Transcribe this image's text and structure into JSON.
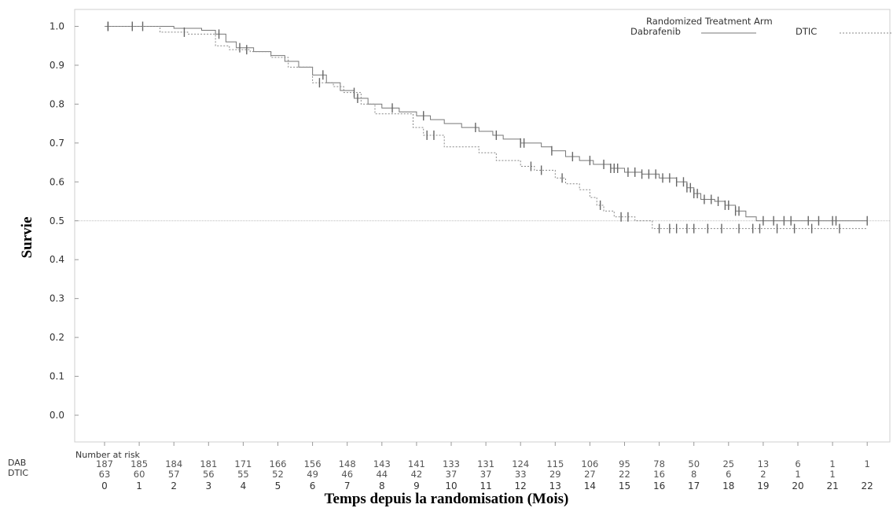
{
  "chart_data": {
    "type": "line",
    "subtype": "kaplan-meier",
    "xlabel": "Temps depuis la randomisation (Mois)",
    "ylabel": "Survie",
    "xlim": [
      0,
      22
    ],
    "ylim": [
      0,
      1
    ],
    "x_ticks": [
      "0",
      "1",
      "2",
      "3",
      "4",
      "5",
      "6",
      "7",
      "8",
      "9",
      "10",
      "11",
      "12",
      "13",
      "14",
      "15",
      "16",
      "17",
      "18",
      "19",
      "20",
      "21",
      "22"
    ],
    "y_ticks": [
      "0.0",
      "0.1",
      "0.2",
      "0.3",
      "0.4",
      "0.5",
      "0.6",
      "0.7",
      "0.8",
      "0.9",
      "1.0"
    ],
    "reference_line_y": 0.5,
    "legend": {
      "title": "Randomized Treatment Arm",
      "position": "top-right",
      "entries": [
        {
          "label": "Dabrafenib",
          "style": "solid"
        },
        {
          "label": "DTIC",
          "style": "dotted"
        }
      ]
    },
    "series": [
      {
        "name": "Dabrafenib",
        "style": "solid",
        "color": "#777777",
        "steps": [
          [
            0,
            1.0
          ],
          [
            1.2,
            1.0
          ],
          [
            2.0,
            0.995
          ],
          [
            2.8,
            0.99
          ],
          [
            3.2,
            0.98
          ],
          [
            3.5,
            0.96
          ],
          [
            3.8,
            0.945
          ],
          [
            4.3,
            0.935
          ],
          [
            4.8,
            0.925
          ],
          [
            5.2,
            0.91
          ],
          [
            5.6,
            0.895
          ],
          [
            6.0,
            0.875
          ],
          [
            6.4,
            0.855
          ],
          [
            6.8,
            0.835
          ],
          [
            7.2,
            0.815
          ],
          [
            7.6,
            0.8
          ],
          [
            8.0,
            0.79
          ],
          [
            8.5,
            0.78
          ],
          [
            9.0,
            0.77
          ],
          [
            9.4,
            0.76
          ],
          [
            9.8,
            0.75
          ],
          [
            10.3,
            0.74
          ],
          [
            10.8,
            0.73
          ],
          [
            11.2,
            0.72
          ],
          [
            11.5,
            0.71
          ],
          [
            12.0,
            0.7
          ],
          [
            12.6,
            0.69
          ],
          [
            12.9,
            0.68
          ],
          [
            13.3,
            0.665
          ],
          [
            13.7,
            0.655
          ],
          [
            14.1,
            0.645
          ],
          [
            14.6,
            0.635
          ],
          [
            15.0,
            0.625
          ],
          [
            15.5,
            0.62
          ],
          [
            16.0,
            0.61
          ],
          [
            16.5,
            0.6
          ],
          [
            16.8,
            0.585
          ],
          [
            17.0,
            0.57
          ],
          [
            17.2,
            0.555
          ],
          [
            17.6,
            0.55
          ],
          [
            17.9,
            0.54
          ],
          [
            18.2,
            0.525
          ],
          [
            18.5,
            0.51
          ],
          [
            18.8,
            0.5
          ],
          [
            22,
            0.5
          ]
        ],
        "censor_x": [
          0.1,
          0.8,
          1.1,
          3.3,
          3.9,
          6.3,
          7.3,
          8.3,
          9.2,
          10.7,
          11.3,
          12.0,
          12.1,
          12.9,
          13.5,
          14.0,
          14.4,
          14.6,
          14.7,
          14.8,
          15.1,
          15.3,
          15.5,
          15.7,
          15.9,
          16.1,
          16.3,
          16.5,
          16.7,
          16.8,
          16.9,
          17.0,
          17.1,
          17.3,
          17.5,
          17.7,
          17.9,
          18.0,
          18.2,
          18.3,
          19.0,
          19.3,
          19.6,
          19.8,
          20.3,
          20.6,
          21.0,
          21.1,
          22.0
        ]
      },
      {
        "name": "DTIC",
        "style": "dotted",
        "color": "#888888",
        "steps": [
          [
            0,
            1.0
          ],
          [
            1.6,
            0.985
          ],
          [
            2.4,
            0.98
          ],
          [
            3.2,
            0.95
          ],
          [
            3.6,
            0.94
          ],
          [
            4.2,
            0.935
          ],
          [
            4.8,
            0.92
          ],
          [
            5.3,
            0.895
          ],
          [
            6.0,
            0.855
          ],
          [
            6.6,
            0.845
          ],
          [
            6.9,
            0.83
          ],
          [
            7.4,
            0.8
          ],
          [
            7.8,
            0.775
          ],
          [
            8.9,
            0.74
          ],
          [
            9.2,
            0.72
          ],
          [
            9.8,
            0.69
          ],
          [
            10.8,
            0.675
          ],
          [
            11.3,
            0.655
          ],
          [
            12.0,
            0.64
          ],
          [
            12.4,
            0.63
          ],
          [
            13.0,
            0.61
          ],
          [
            13.3,
            0.595
          ],
          [
            13.7,
            0.58
          ],
          [
            14.0,
            0.56
          ],
          [
            14.2,
            0.54
          ],
          [
            14.4,
            0.525
          ],
          [
            14.7,
            0.51
          ],
          [
            15.3,
            0.5
          ],
          [
            15.8,
            0.48
          ],
          [
            22,
            0.48
          ]
        ],
        "censor_x": [
          0.1,
          2.3,
          4.1,
          6.2,
          7.2,
          9.3,
          9.5,
          12.3,
          12.6,
          13.2,
          14.3,
          14.9,
          15.1,
          16.0,
          16.3,
          16.5,
          16.8,
          17.0,
          17.4,
          17.8,
          18.3,
          18.7,
          18.9,
          19.4,
          19.9,
          20.4,
          21.2
        ]
      }
    ],
    "risk_table": {
      "title": "Number at risk",
      "rows": [
        {
          "label": "DAB",
          "values": [
            "187",
            "185",
            "184",
            "181",
            "171",
            "166",
            "156",
            "148",
            "143",
            "141",
            "133",
            "131",
            "124",
            "115",
            "106",
            "95",
            "78",
            "50",
            "25",
            "13",
            "6",
            "1",
            "1"
          ]
        },
        {
          "label": "DTIC",
          "values": [
            "63",
            "60",
            "57",
            "56",
            "55",
            "52",
            "49",
            "46",
            "44",
            "42",
            "37",
            "37",
            "33",
            "29",
            "27",
            "22",
            "16",
            "8",
            "6",
            "2",
            "1",
            "1",
            ""
          ]
        }
      ]
    }
  }
}
